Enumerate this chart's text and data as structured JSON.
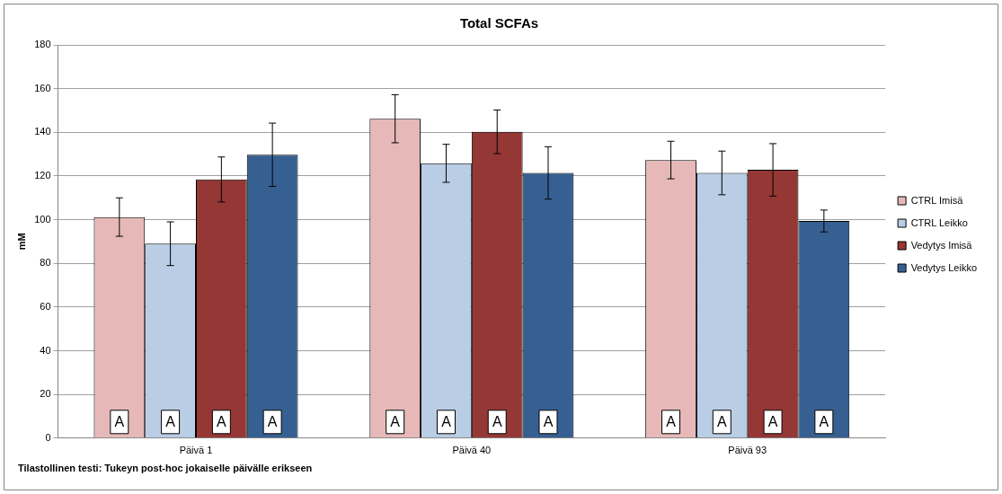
{
  "chart_data": {
    "type": "bar",
    "title": "Total SCFAs",
    "ylabel": "mM",
    "categories": [
      "Päivä 1",
      "Päivä 40",
      "Päivä 93"
    ],
    "series": [
      {
        "name": "CTRL Imisä",
        "color": "#e6b9b8",
        "values": [
          101.2,
          146.2,
          127.3
        ],
        "errors": [
          8.8,
          11,
          8.6
        ]
      },
      {
        "name": "CTRL Leikko",
        "color": "#b9cde5",
        "values": [
          89,
          125.8,
          121.4
        ],
        "errors": [
          10,
          8.7,
          10
        ]
      },
      {
        "name": "Vedytys Imisä",
        "color": "#953735",
        "values": [
          118.4,
          140.2,
          122.8
        ],
        "errors": [
          10.3,
          10,
          12
        ]
      },
      {
        "name": "Vedytys Leikko",
        "color": "#376092",
        "values": [
          129.7,
          121.4,
          99.4
        ],
        "errors": [
          14.5,
          12,
          5
        ]
      }
    ],
    "ylim": [
      0,
      180
    ],
    "yticks": [
      0,
      20,
      40,
      60,
      80,
      100,
      120,
      140,
      160,
      180
    ],
    "grid": "y",
    "legend": "right",
    "annotations": [
      "A",
      "A",
      "A",
      "A",
      "A",
      "A",
      "A",
      "A",
      "A",
      "A",
      "A",
      "A",
      "Tilastollinen testi: Tukeyn post-hoc jokaiselle päivälle erikseen"
    ]
  }
}
